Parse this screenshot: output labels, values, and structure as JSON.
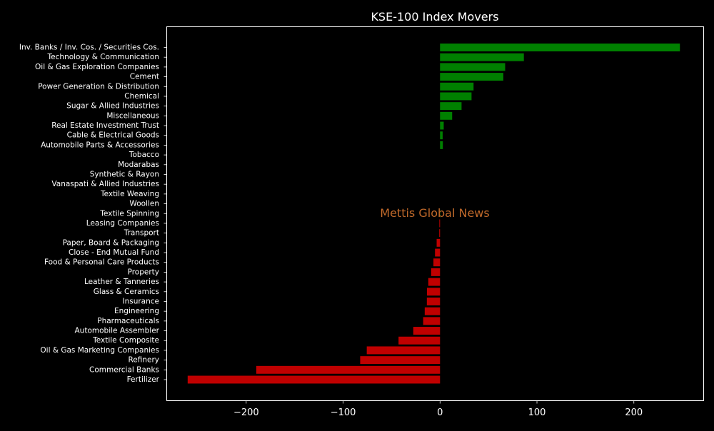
{
  "chart_data": {
    "type": "bar",
    "orientation": "horizontal",
    "title": "KSE-100 Index Movers",
    "watermark": "Mettis Global News",
    "xlabel": "",
    "ylabel": "",
    "xlim": [
      -282,
      272
    ],
    "xticks": [
      -200,
      -100,
      0,
      100,
      200
    ],
    "xtick_labels": [
      "−200",
      "−100",
      "0",
      "100",
      "200"
    ],
    "grid": false,
    "colors": {
      "positive": "#008000",
      "negative": "#c00000",
      "background": "#000000",
      "text": "#ffffff",
      "watermark": "#c0692a"
    },
    "categories": [
      "Inv. Banks / Inv. Cos. / Securities Cos.",
      "Technology & Communication",
      "Oil & Gas Exploration Companies",
      "Cement",
      "Power Generation & Distribution",
      "Chemical",
      "Sugar & Allied Industries",
      "Miscellaneous",
      "Real Estate Investment Trust",
      "Cable & Electrical Goods",
      "Automobile Parts & Accessories",
      "Tobacco",
      "Modarabas",
      "Synthetic & Rayon",
      "Vanaspati & Allied Industries",
      "Textile Weaving",
      "Woollen",
      "Textile Spinning",
      "Leasing Companies",
      "Transport",
      "Paper, Board & Packaging",
      "Close - End Mutual Fund",
      "Food & Personal Care Products",
      "Property",
      "Leather & Tanneries",
      "Glass & Ceramics",
      "Insurance",
      "Engineering",
      "Pharmaceuticals",
      "Automobile Assembler",
      "Textile Composite",
      "Oil & Gas Marketing Companies",
      "Refinery",
      "Commercial Banks",
      "Fertilizer"
    ],
    "values": [
      247.5,
      86.5,
      67.2,
      65.3,
      34.6,
      32.5,
      22.2,
      12.5,
      3.8,
      2.7,
      2.9,
      0,
      0,
      0,
      0,
      0,
      0,
      0.3,
      -0.7,
      -0.8,
      -3.5,
      -5.2,
      -6.8,
      -9.2,
      -12.1,
      -13.5,
      -13.6,
      -15.8,
      -17.4,
      -27.6,
      -42.8,
      -75.6,
      -82.4,
      -189.6,
      -260.4
    ]
  }
}
